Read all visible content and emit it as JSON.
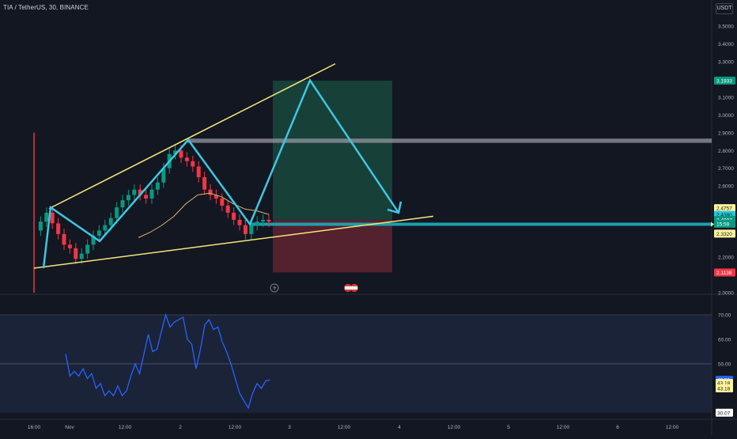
{
  "header": {
    "title": "TIA / TetherUS, 30, BINANCE",
    "currency": "USDT"
  },
  "price_axis": {
    "ticks": [
      "3.5000",
      "3.4000",
      "3.3000",
      "3.2000",
      "3.1000",
      "3.0000",
      "2.9000",
      "2.8000",
      "2.7000",
      "2.6000",
      "2.5000",
      "2.4000",
      "2.3000",
      "2.2000",
      "2.1000",
      "2.0000"
    ],
    "ticks_hidden_by_badges": [
      "3.2000",
      "2.5000",
      "2.4000",
      "2.3000",
      "2.1000"
    ],
    "badges": [
      {
        "label": "3.1933",
        "value": 3.1933,
        "color": "#089981"
      },
      {
        "label": "2.4757",
        "value": 2.4757,
        "color": "#fff59d"
      },
      {
        "label": "2.4380",
        "value": 2.438,
        "color": "#26c6da"
      },
      {
        "label": "2.4097",
        "value": 2.4097,
        "color": "#089981"
      },
      {
        "label": "15:59",
        "value": 2.388,
        "color": "#089981"
      },
      {
        "label": "2.3320",
        "value": 2.332,
        "color": "#fff59d"
      },
      {
        "label": "2.1138",
        "value": 2.1138,
        "color": "#f23645"
      }
    ]
  },
  "rsi_axis": {
    "ticks": [
      "70.00",
      "60.00",
      "50.00"
    ],
    "badges": [
      {
        "label": "43.51",
        "value": 43.51,
        "color": "#2962ff"
      },
      {
        "label": "43.18",
        "value": 42.2,
        "color": "#fff59d"
      },
      {
        "label": "43.18",
        "value": 40.0,
        "color": "#fff59d"
      },
      {
        "label": "30.07",
        "value": 30.07,
        "color": "#ffffff"
      }
    ]
  },
  "time_axis": [
    "16:00",
    "Nov",
    "12:00",
    "2",
    "12:00",
    "3",
    "12:00",
    "4",
    "12:00",
    "5",
    "12:00",
    "6",
    "12:00"
  ],
  "chart_data": {
    "type": "line",
    "symbol": "TIA / TetherUS",
    "interval": "30",
    "exchange": "BINANCE",
    "y_range": [
      1.975,
      3.585
    ],
    "x_axis_labels": [
      "16:00",
      "Nov",
      "12:00",
      "2",
      "12:00",
      "3",
      "12:00",
      "4",
      "12:00",
      "5",
      "12:00",
      "6",
      "12:00"
    ],
    "price_series": {
      "name": "",
      "approx_close_path": [
        2.35,
        2.4,
        2.45,
        2.39,
        2.33,
        2.27,
        2.25,
        2.19,
        2.22,
        2.27,
        2.32,
        2.35,
        2.38,
        2.42,
        2.48,
        2.52,
        2.55,
        2.58,
        2.55,
        2.53,
        2.58,
        2.62,
        2.7,
        2.78,
        2.8,
        2.76,
        2.74,
        2.71,
        2.65,
        2.58,
        2.55,
        2.53,
        2.49,
        2.45,
        2.41,
        2.38,
        2.33,
        2.38,
        2.4,
        2.41,
        2.4
      ],
      "start_index_time": "Oct 31 16:00",
      "step_minutes": 60,
      "last": 2.4097
    },
    "moving_average": {
      "name": "",
      "color": "#f0c674",
      "approx_values": [
        2.31,
        2.34,
        2.38,
        2.43,
        2.5,
        2.55,
        2.56,
        2.54,
        2.5,
        2.47,
        2.46,
        2.44
      ]
    },
    "drawings": {
      "channel_upper": [
        [
          2.473,
          "Oct 31 18:00"
        ],
        [
          3.288,
          "Nov 3 05:00"
        ]
      ],
      "channel_lower": [
        [
          2.138,
          "Oct 31 17:00"
        ],
        [
          2.43,
          "Nov 4 10:00"
        ]
      ],
      "zigzag": [
        2.138,
        2.48,
        2.29,
        2.86,
        2.385,
        3.195,
        2.45
      ],
      "resistance_zone": [
        2.843,
        2.867
      ],
      "support_line": 2.385,
      "long_position": {
        "entry": 2.4097,
        "target": 3.1933,
        "stop": 2.1138
      }
    },
    "rsi": {
      "name": "RSI",
      "ylim": [
        28,
        72
      ],
      "upper_band": 70,
      "middle": 50,
      "last": 43.51,
      "min_visible": 30.07,
      "values": [
        54,
        45,
        47,
        45,
        48,
        44,
        46,
        40,
        42,
        37,
        39,
        37,
        41,
        37,
        39,
        45,
        50,
        46,
        54,
        62,
        55,
        56,
        63,
        70,
        65,
        67,
        68,
        69,
        60,
        58,
        48,
        56,
        66,
        68,
        64,
        65,
        59,
        55,
        50,
        44,
        38,
        35,
        32,
        38,
        42,
        40,
        43,
        43.51
      ]
    }
  }
}
